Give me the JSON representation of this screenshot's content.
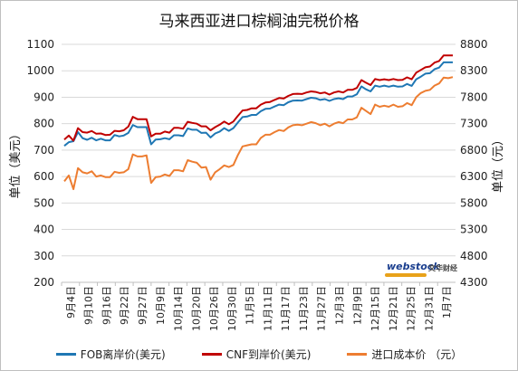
{
  "chart_data": {
    "type": "line",
    "title": "马来西亚进口棕榈油完税价格",
    "ylabel_left": "单位（美元）",
    "ylabel_right": "单位（元）",
    "ylim_left": [
      200,
      1100
    ],
    "ylim_right": [
      4300,
      8800
    ],
    "yticks_left": [
      200,
      300,
      400,
      500,
      600,
      700,
      800,
      900,
      1000,
      1100
    ],
    "yticks_right": [
      4300,
      4800,
      5300,
      5800,
      6300,
      6800,
      7300,
      7800,
      8300,
      8800
    ],
    "x_tick_labels": [
      "9月4日",
      "9月10日",
      "9月16日",
      "9月22日",
      "9月27日",
      "10月9日",
      "10月14日",
      "10月20日",
      "10月26日",
      "10月30日",
      "11月5日",
      "11月11日",
      "11月17日",
      "11月23日",
      "11月27日",
      "12月3日",
      "12月9日",
      "12月15日",
      "12月21日",
      "12月25日",
      "12月31日",
      "1月7日"
    ],
    "grid": true,
    "legend_position": "bottom",
    "series": [
      {
        "name": "FOB离岸价(美元)",
        "axis": "left",
        "color": "#1f77b4",
        "values": [
          716,
          730,
          734,
          768,
          745,
          739,
          747,
          737,
          743,
          737,
          737,
          757,
          752,
          755,
          765,
          795,
          787,
          787,
          787,
          722,
          740,
          741,
          745,
          741,
          756,
          756,
          753,
          782,
          777,
          777,
          765,
          766,
          748,
          763,
          770,
          783,
          773,
          783,
          805,
          825,
          827,
          833,
          833,
          847,
          856,
          857,
          865,
          872,
          870,
          881,
          887,
          888,
          887,
          893,
          898,
          896,
          890,
          893,
          886,
          893,
          896,
          893,
          903,
          903,
          911,
          941,
          930,
          922,
          944,
          940,
          944,
          940,
          944,
          940,
          941,
          950,
          943,
          968,
          978,
          989,
          991,
          1006,
          1012,
          1032,
          1032,
          1032
        ]
      },
      {
        "name": "CNF到岸价(美元)",
        "axis": "left",
        "color": "#c00000",
        "values": [
          740,
          755,
          736,
          783,
          768,
          766,
          772,
          762,
          763,
          757,
          758,
          773,
          771,
          775,
          789,
          826,
          817,
          817,
          817,
          752,
          762,
          762,
          770,
          766,
          784,
          784,
          781,
          807,
          803,
          800,
          790,
          790,
          775,
          787,
          796,
          808,
          798,
          808,
          830,
          850,
          852,
          858,
          858,
          872,
          880,
          882,
          890,
          897,
          895,
          905,
          912,
          913,
          912,
          918,
          922,
          920,
          915,
          918,
          910,
          918,
          922,
          918,
          928,
          928,
          935,
          965,
          955,
          946,
          969,
          965,
          968,
          965,
          969,
          965,
          966,
          975,
          968,
          993,
          1003,
          1013,
          1016,
          1031,
          1037,
          1058,
          1058,
          1058
        ]
      },
      {
        "name": "进口成本价 （元）",
        "axis": "right",
        "color": "#ed7d31",
        "values": [
          6210,
          6320,
          6060,
          6460,
          6380,
          6360,
          6400,
          6300,
          6320,
          6290,
          6290,
          6390,
          6370,
          6380,
          6440,
          6720,
          6680,
          6680,
          6700,
          6180,
          6290,
          6300,
          6340,
          6310,
          6420,
          6420,
          6400,
          6610,
          6580,
          6560,
          6470,
          6480,
          6240,
          6380,
          6440,
          6510,
          6480,
          6520,
          6710,
          6870,
          6890,
          6910,
          6910,
          7030,
          7090,
          7090,
          7140,
          7180,
          7160,
          7230,
          7270,
          7280,
          7270,
          7300,
          7330,
          7310,
          7270,
          7300,
          7250,
          7300,
          7330,
          7310,
          7380,
          7380,
          7420,
          7600,
          7540,
          7480,
          7660,
          7620,
          7640,
          7620,
          7660,
          7620,
          7630,
          7690,
          7650,
          7800,
          7880,
          7920,
          7940,
          8020,
          8060,
          8170,
          8160,
          8180
        ]
      }
    ]
  },
  "watermark": {
    "brand": "webstock",
    "brand_cn": "文华财经"
  }
}
